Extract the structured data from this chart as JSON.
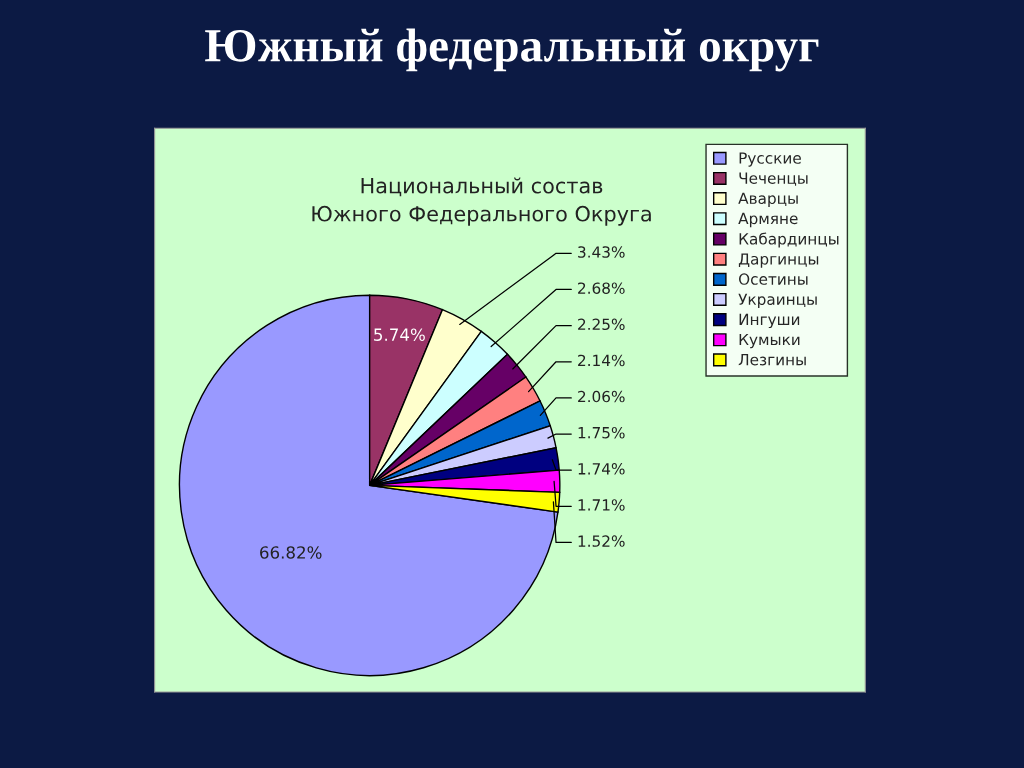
{
  "chart_data": {
    "type": "pie",
    "title": "Южный федеральный округ",
    "subtitle": "Национальный состав\nЮжного Федерального Округа",
    "categories": [
      "Русские",
      "Чеченцы",
      "Аварцы",
      "Армяне",
      "Кабардинцы",
      "Даргинцы",
      "Осетины",
      "Украинцы",
      "Ингуши",
      "Кумыки",
      "Лезгины"
    ],
    "values": [
      66.82,
      5.74,
      3.43,
      2.68,
      2.25,
      2.14,
      2.06,
      1.75,
      1.74,
      1.71,
      1.52
    ],
    "value_labels": [
      "66.82%",
      "5.74%",
      "3.43%",
      "2.68%",
      "2.25%",
      "2.14%",
      "2.06%",
      "1.75%",
      "1.74%",
      "1.71%",
      "1.52%"
    ],
    "colors": [
      "#9999ff",
      "#993366",
      "#ffffcc",
      "#ccffff",
      "#660066",
      "#ff8080",
      "#0066cc",
      "#ccccff",
      "#000080",
      "#ff00ff",
      "#ffff00"
    ],
    "legend": "top right"
  }
}
